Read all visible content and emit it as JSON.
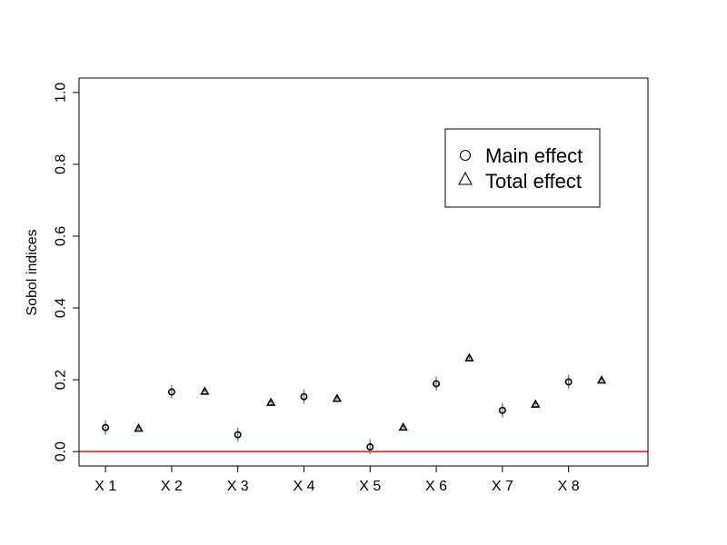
{
  "chart_data": {
    "type": "scatter",
    "title": "",
    "xlabel": "",
    "ylabel": "Sobol indices",
    "ylim": [
      -0.04,
      1.04
    ],
    "y_ticks": [
      "0.0",
      "0.2",
      "0.4",
      "0.6",
      "0.8",
      "1.0"
    ],
    "x_range": [
      0.6,
      9.2
    ],
    "categories": [
      "X 1",
      "X 2",
      "X 3",
      "X 4",
      "X 5",
      "X 6",
      "X 7",
      "X 8"
    ],
    "grid": false,
    "legend_position": "top-right",
    "reference_line": {
      "y": 0,
      "color": "#ff0000"
    },
    "series": [
      {
        "name": "Main effect",
        "marker": "circle",
        "x": [
          1,
          2,
          3,
          4,
          5,
          6,
          7,
          8
        ],
        "values": [
          0.067,
          0.166,
          0.047,
          0.153,
          0.013,
          0.189,
          0.115,
          0.194
        ],
        "lower": [
          0.047,
          0.148,
          0.028,
          0.133,
          -0.007,
          0.17,
          0.095,
          0.175
        ],
        "upper": [
          0.087,
          0.186,
          0.067,
          0.173,
          0.035,
          0.209,
          0.136,
          0.214
        ]
      },
      {
        "name": "Total effect",
        "marker": "triangle",
        "x": [
          1.5,
          2.5,
          3.5,
          4.5,
          5.5,
          6.5,
          7.5,
          8.5
        ],
        "values": [
          0.065,
          0.168,
          0.137,
          0.148,
          0.068,
          0.261,
          0.132,
          0.199
        ],
        "lower": [
          0.061,
          0.164,
          0.133,
          0.144,
          0.064,
          0.257,
          0.128,
          0.195
        ],
        "upper": [
          0.069,
          0.172,
          0.141,
          0.152,
          0.072,
          0.265,
          0.136,
          0.203
        ]
      }
    ]
  }
}
